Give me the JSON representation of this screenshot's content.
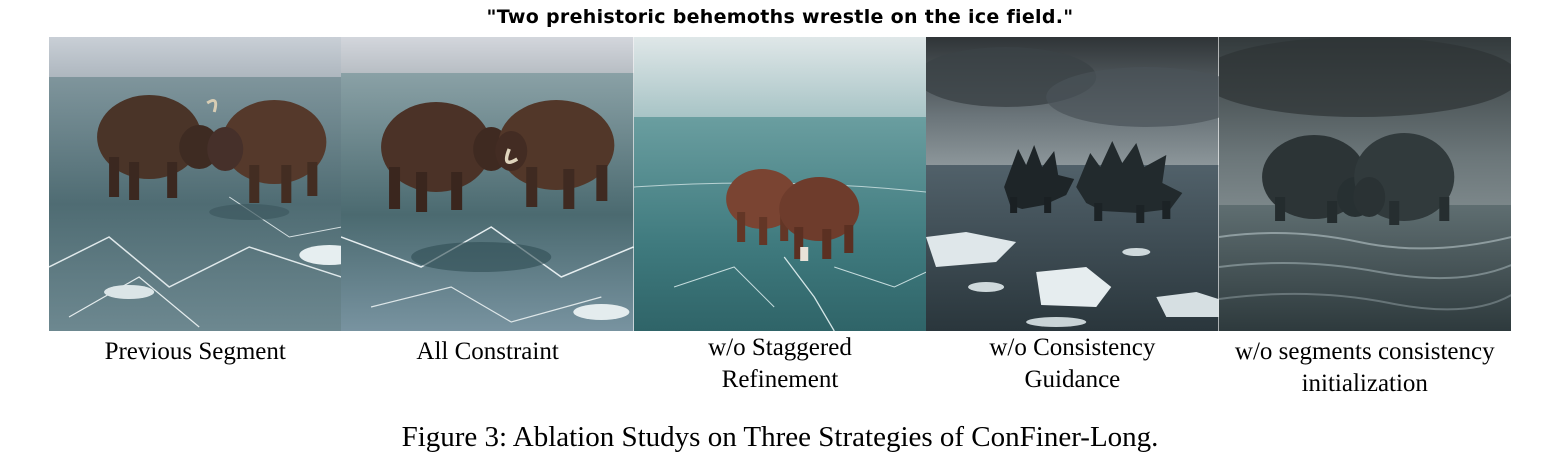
{
  "prompt": "\"Two prehistoric behemoths wrestle on the ice field.\"",
  "panels": [
    {
      "label": "Previous Segment",
      "scene": "two shaggy brown mammoth-like beasts clashing on cracked ice under pale sky"
    },
    {
      "label": "All Constraint",
      "scene": "two shaggy brown beasts with tusks locked head to head on cracked ice"
    },
    {
      "label": "w/o Staggered\nRefinement",
      "scene": "two small brown beasts on teal frozen water"
    },
    {
      "label": "w/o Consistency\nGuidance",
      "scene": "two dark spiky beasts among ice floes under stormy sky"
    },
    {
      "label": "w/o segments consistency\ninitialization",
      "scene": "two dark hunched beasts on misty dark water"
    }
  ],
  "caption": "Figure 3: Ablation Studys on Three Strategies of ConFiner-Long."
}
